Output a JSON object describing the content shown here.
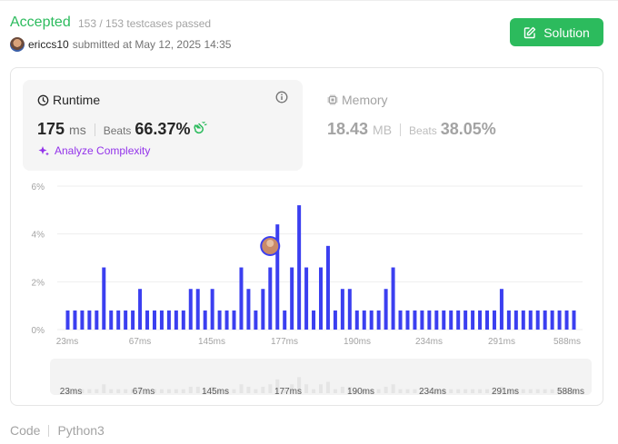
{
  "header": {
    "status": "Accepted",
    "testcases": "153 / 153 testcases passed",
    "user": "ericcs10",
    "submitted": "submitted at May 12, 2025 14:35",
    "solution_button": "Solution"
  },
  "runtime": {
    "title": "Runtime",
    "value": "175",
    "unit": "ms",
    "beats_label": "Beats",
    "beats": "66.37%",
    "analyze": "Analyze Complexity"
  },
  "memory": {
    "title": "Memory",
    "value": "18.43",
    "unit": "MB",
    "beats_label": "Beats",
    "beats": "38.05%"
  },
  "chart_data": {
    "type": "bar",
    "y_ticks": [
      "6%",
      "4%",
      "2%",
      "0%"
    ],
    "ylim": [
      0,
      6
    ],
    "x_ticks": [
      "23ms",
      "67ms",
      "145ms",
      "177ms",
      "190ms",
      "234ms",
      "291ms",
      "588ms"
    ],
    "values": [
      0.8,
      0.8,
      0.8,
      0.8,
      0.8,
      2.6,
      0.8,
      0.8,
      0.8,
      0.8,
      1.7,
      0.8,
      0.8,
      0.8,
      0.8,
      0.8,
      0.8,
      1.7,
      1.7,
      0.8,
      1.7,
      0.8,
      0.8,
      0.8,
      2.6,
      1.7,
      0.8,
      1.7,
      2.6,
      4.4,
      0.8,
      2.6,
      5.2,
      2.6,
      0.8,
      2.6,
      3.5,
      0.8,
      1.7,
      1.7,
      0.8,
      0.8,
      0.8,
      0.8,
      1.7,
      2.6,
      0.8,
      0.8,
      0.8,
      0.8,
      0.8,
      0.8,
      0.8,
      0.8,
      0.8,
      0.8,
      0.8,
      0.8,
      0.8,
      0.8,
      1.7,
      0.8,
      0.8,
      0.8,
      0.8,
      0.8,
      0.8,
      0.8,
      0.8,
      0.8,
      0.8
    ],
    "highlight_index": 29,
    "bar_color": "#3b3ff0",
    "overview_color": "#e5e5e5"
  },
  "footer": {
    "code_label": "Code",
    "language": "Python3"
  }
}
